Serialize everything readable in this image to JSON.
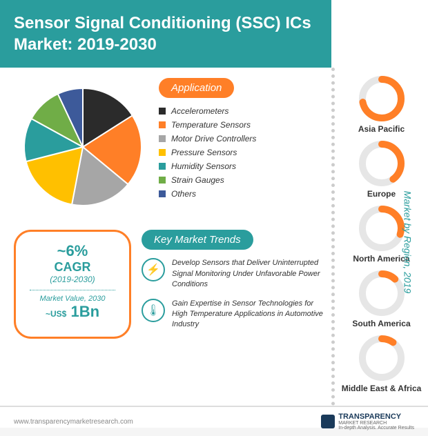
{
  "header": {
    "title": "Sensor Signal Conditioning (SSC) ICs Market: 2019-2030"
  },
  "app_badge": "Application",
  "pie": {
    "slices": [
      {
        "label": "Accelerometers",
        "color": "#2b2b2b",
        "value": 16
      },
      {
        "label": "Temperature Sensors",
        "color": "#ff7f27",
        "value": 20
      },
      {
        "label": "Motor Drive Controllers",
        "color": "#a6a6a6",
        "value": 17
      },
      {
        "label": "Pressure Sensors",
        "color": "#ffc000",
        "value": 18
      },
      {
        "label": "Humidity Sensors",
        "color": "#2a9d9d",
        "value": 12
      },
      {
        "label": "Strain Gauges",
        "color": "#70ad47",
        "value": 10
      },
      {
        "label": "Others",
        "color": "#3d5a9a",
        "value": 7
      }
    ]
  },
  "stat": {
    "cagr": "~6%",
    "cagr_label": "CAGR",
    "period": "(2019-2030)",
    "mv_label": "Market Value, 2030",
    "mv_prefix": "~US$",
    "mv_val": "1Bn"
  },
  "trends_badge": "Key Market Trends",
  "trends": [
    {
      "icon": "⚡",
      "text": "Develop Sensors that Deliver Uninterrupted Signal Monitoring Under Unfavorable Power Conditions"
    },
    {
      "icon": "🌡",
      "text": "Gain Expertise in Sensor Technologies for High Temperature Applications in Automotive Industry"
    }
  ],
  "right_label": "Market by Region, 2019",
  "regions": [
    {
      "name": "Asia Pacific",
      "pct": 72,
      "color": "#ff7f27"
    },
    {
      "name": "Europe",
      "pct": 40,
      "color": "#ff7f27"
    },
    {
      "name": "North America",
      "pct": 30,
      "color": "#ff7f27"
    },
    {
      "name": "South America",
      "pct": 12,
      "color": "#ff7f27"
    },
    {
      "name": "Middle East & Africa",
      "pct": 10,
      "color": "#ff7f27"
    }
  ],
  "footer": {
    "url": "www.transparencymarketresearch.com",
    "brand": "TRANSPARENCY",
    "brand2": "MARKET RESEARCH",
    "tag": "In-depth Analysis. Accurate Results"
  }
}
